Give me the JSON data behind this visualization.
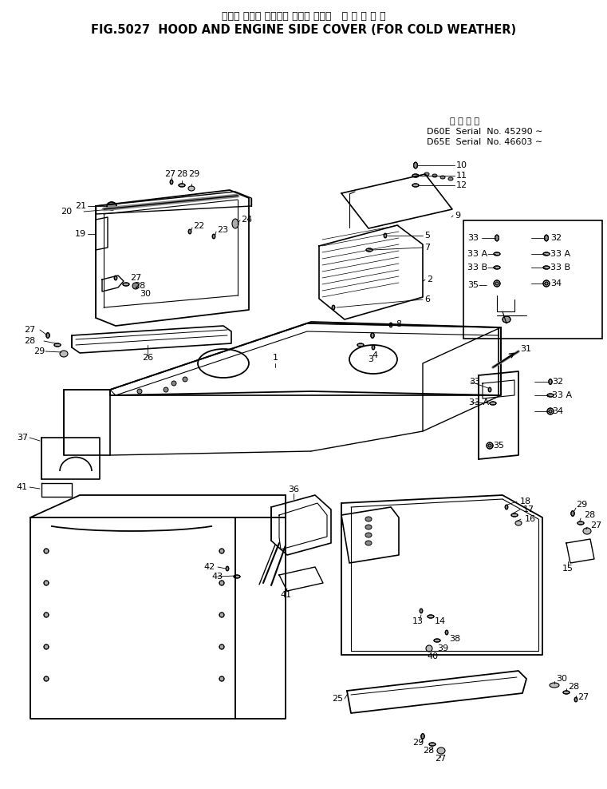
{
  "title_jp": "フード および エンジン サイド カバー   寒 冷 地 仕 機",
  "title_en": "FIG.5027  HOOD AND ENGINE SIDE COVER (FOR COLD WEATHER)",
  "serial_header": "適 用 号 機",
  "serial_d60e": "D60E  Serial  No. 45290 ∼",
  "serial_d65e": "D65E  Serial  No. 46603 ∼",
  "bg_color": "#ffffff",
  "fig_width": 7.61,
  "fig_height": 9.88,
  "dpi": 100
}
